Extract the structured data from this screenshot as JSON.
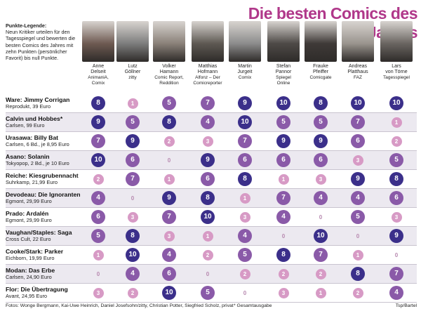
{
  "title": "Die besten Comics des Jahres",
  "legend": {
    "heading": "Punkte-Legende:",
    "text": "Neun Kritiker urteilen für den Tagesspiegel und bewerten die besten Comics des Jahres mit zehn Punkten (persönlicher Favorit) bis null Punkte."
  },
  "critics": [
    {
      "name1": "Anne",
      "name2": "Delseit",
      "pub1": "AnimaniA,",
      "pub2": "Comix",
      "photo_color": "#6e5a52"
    },
    {
      "name1": "Lutz",
      "name2": "Göllner",
      "pub1": "zitty",
      "pub2": "",
      "photo_color": "#7d7d7d"
    },
    {
      "name1": "Volker",
      "name2": "Hamann",
      "pub1": "Comic Report,",
      "pub2": "Reddition",
      "photo_color": "#8a8179"
    },
    {
      "name1": "Matthias",
      "name2": "Hofmann",
      "pub1": "Alfonz – Der",
      "pub2": "Comicreporter",
      "photo_color": "#5e5953"
    },
    {
      "name1": "Martin",
      "name2": "Jurgeit",
      "pub1": "Comix",
      "pub2": "",
      "photo_color": "#8c8c8c"
    },
    {
      "name1": "Stefan",
      "name2": "Pannor",
      "pub1": "Spiegel",
      "pub2": "Online",
      "photo_color": "#4e4a47"
    },
    {
      "name1": "Frauke",
      "name2": "Pfeiffer",
      "pub1": "Comicgate",
      "pub2": "",
      "photo_color": "#3f3a38"
    },
    {
      "name1": "Andreas",
      "name2": "Platthaus",
      "pub1": "FAZ",
      "pub2": "",
      "photo_color": "#9a948e"
    },
    {
      "name1": "Lars",
      "name2": "von Törne",
      "pub1": "Tagesspiegel",
      "pub2": "",
      "photo_color": "#6a6561"
    }
  ],
  "comics": [
    {
      "title": "Ware: Jimmy Corrigan",
      "pub": "Reprodukt, 39 Euro",
      "scores": [
        8,
        1,
        5,
        7,
        9,
        10,
        8,
        10,
        10
      ]
    },
    {
      "title": "Calvin und Hobbes*",
      "pub": "Carlsen, 99 Euro",
      "scores": [
        9,
        5,
        8,
        4,
        10,
        5,
        5,
        7,
        1
      ]
    },
    {
      "title": "Urasawa: Billy Bat",
      "pub": "Carlsen, 6 Bd., je 8,95 Euro",
      "scores": [
        7,
        9,
        2,
        3,
        7,
        9,
        9,
        6,
        2
      ]
    },
    {
      "title": "Asano: Solanin",
      "pub": "Tokyopop, 2 Bd., je 10 Euro",
      "scores": [
        10,
        6,
        0,
        9,
        6,
        6,
        6,
        3,
        5
      ]
    },
    {
      "title": "Reiche: Kiesgrubennacht",
      "pub": "Suhrkamp, 21,99 Euro",
      "scores": [
        2,
        7,
        1,
        6,
        8,
        1,
        3,
        9,
        8
      ]
    },
    {
      "title": "Devodeau: Die Ignoranten",
      "pub": "Egmont, 29,99 Euro",
      "scores": [
        4,
        0,
        9,
        8,
        1,
        7,
        4,
        4,
        6
      ]
    },
    {
      "title": "Prado: Ardalén",
      "pub": "Egmont, 29,99 Euro",
      "scores": [
        6,
        3,
        7,
        10,
        3,
        4,
        0,
        5,
        3
      ]
    },
    {
      "title": "Vaughan/Staples: Saga",
      "pub": "Cross Cult, 22 Euro",
      "scores": [
        5,
        8,
        3,
        1,
        4,
        0,
        10,
        0,
        9
      ]
    },
    {
      "title": "Cooke/Stark: Parker",
      "pub": "Eichborn, 19,99 Euro",
      "scores": [
        1,
        10,
        4,
        2,
        5,
        8,
        7,
        1,
        0
      ]
    },
    {
      "title": "Modan: Das Erbe",
      "pub": "Carlsen, 24,90 Euro",
      "scores": [
        0,
        4,
        6,
        0,
        2,
        2,
        2,
        8,
        7
      ]
    },
    {
      "title": "Flor: Die Übertragung",
      "pub": "Avant, 24,95 Euro",
      "scores": [
        3,
        2,
        10,
        5,
        0,
        3,
        1,
        2,
        4
      ]
    }
  ],
  "footer": {
    "credits": "Fotos: Wonge Bergmann, Kai-Uwe Heinrich, Daniel Josefsohn/zitty, Christian Potter, Siegfried Scholz, privat",
    "footnote": "* Gesamtausgabe",
    "source": "Tsp/Bartel"
  },
  "colors": {
    "title": "#b0388a",
    "score_high": "#3b2f8a",
    "score_mid": "#8a5aa8",
    "score_low": "#d79ac5",
    "score_zero": "#b88ab0"
  }
}
